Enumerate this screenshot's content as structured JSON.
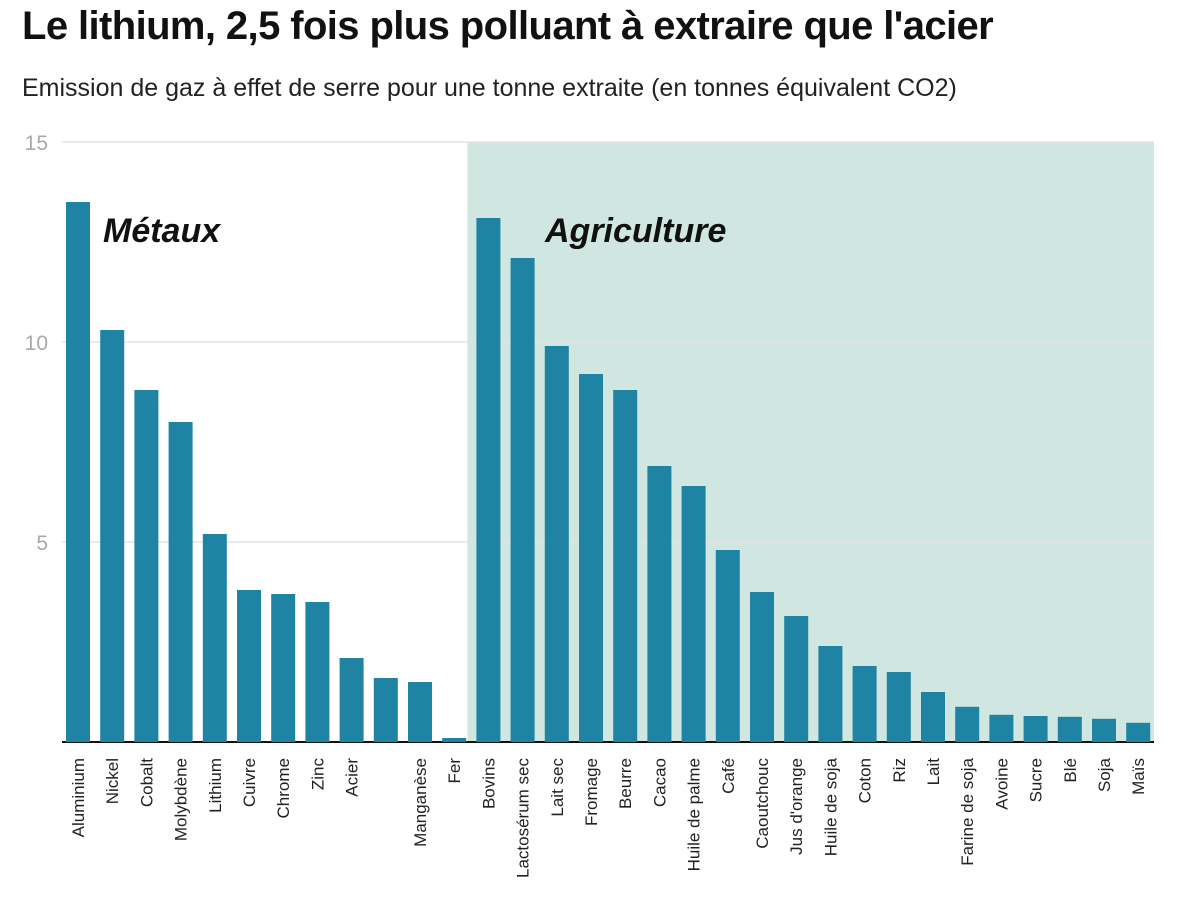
{
  "header": {
    "title": "Le lithium, 2,5 fois plus polluant à extraire que l'acier",
    "subtitle": "Emission de gaz à effet de serre pour une tonne extraite (en tonnes équivalent CO2)"
  },
  "colors": {
    "bar": "#1f84a4",
    "agriculture_background": "#cfe6e1",
    "gridline": "#e4e4e4",
    "axis": "#111111"
  },
  "chart_data": {
    "type": "bar",
    "categories": [
      "Aluminium",
      "Nickel",
      "Cobalt",
      "Molybdène",
      "Lithium",
      "Cuivre",
      "Chrome",
      "Zinc",
      "Acier",
      "",
      "Manganèse",
      "Fer",
      "Bovins",
      "Lactosérum sec",
      "Lait sec",
      "Fromage",
      "Beurre",
      "Cacao",
      "Huile de palme",
      "Café",
      "Caoutchouc",
      "Jus d'orange",
      "Huile de soja",
      "Coton",
      "Riz",
      "Lait",
      "Farine de soja",
      "Avoine",
      "Sucre",
      "Blé",
      "Soja",
      "Maïs"
    ],
    "values": [
      13.5,
      10.3,
      8.8,
      8.0,
      5.2,
      3.8,
      3.7,
      3.5,
      2.1,
      1.6,
      1.5,
      0.1,
      13.1,
      12.1,
      9.9,
      9.2,
      8.8,
      6.9,
      6.4,
      4.8,
      3.75,
      3.15,
      2.4,
      1.9,
      1.75,
      1.25,
      0.88,
      0.68,
      0.65,
      0.63,
      0.58,
      0.48
    ],
    "groups": [
      {
        "label": "Métaux",
        "start": 0,
        "end": 11
      },
      {
        "label": "Agriculture",
        "start": 12,
        "end": 31
      }
    ],
    "yticks": [
      5,
      10,
      15
    ],
    "ylim": [
      0,
      15
    ],
    "grid": true,
    "xlabel": "",
    "ylabel": ""
  }
}
